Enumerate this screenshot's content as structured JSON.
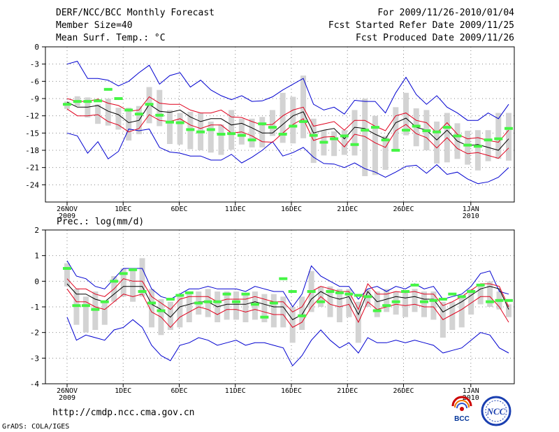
{
  "header": {
    "title": "DERF/NCC/BCC Monthly Forecast",
    "member_size": "Member Size=40",
    "variable": "Mean Surf. Temp.: °C",
    "forecast_period": "For 2009/11/26-2010/01/04",
    "fcst_started": "Fcst Started Refer Date 2009/11/25",
    "fcst_produced": "Fcst Produced Date 2009/11/26"
  },
  "footer": {
    "url": "http://cmdp.ncc.cma.gov.cn",
    "grads": "GrADS: COLA/IGES",
    "logo_bcc": "BCC",
    "logo_ncc": "NCC"
  },
  "colors": {
    "box": "#d3d3d3",
    "mean": "#000000",
    "spread": "#e0001c",
    "extreme": "#0000d0",
    "obs": "#45f545"
  },
  "x_axis": {
    "days": 40,
    "ticks": [
      {
        "day": 0,
        "label": "26NOV",
        "sub": "2009"
      },
      {
        "day": 5,
        "label": "1DEC",
        "sub": ""
      },
      {
        "day": 10,
        "label": "6DEC",
        "sub": ""
      },
      {
        "day": 15,
        "label": "11DEC",
        "sub": ""
      },
      {
        "day": 20,
        "label": "16DEC",
        "sub": ""
      },
      {
        "day": 25,
        "label": "21DEC",
        "sub": ""
      },
      {
        "day": 30,
        "label": "26DEC",
        "sub": ""
      },
      {
        "day": 36,
        "label": "1JAN",
        "sub": "2010"
      }
    ]
  },
  "chart_data": [
    {
      "type": "box",
      "title": "Mean Surf. Temp.: °C",
      "ylim": [
        -27,
        0
      ],
      "yticks": [
        0,
        -3,
        -6,
        -9,
        -12,
        -15,
        -18,
        -21,
        -24
      ],
      "mean": [
        -9.6,
        -10.5,
        -10.5,
        -10.2,
        -11.2,
        -11.8,
        -13.2,
        -12.8,
        -10,
        -11.2,
        -11.4,
        -11,
        -12.2,
        -13,
        -12.5,
        -12.5,
        -13.6,
        -13.3,
        -14.1,
        -15,
        -15,
        -13.5,
        -12,
        -11.3,
        -15,
        -14.5,
        -14.2,
        -16,
        -14,
        -14.2,
        -15.2,
        -16,
        -13.2,
        -12.4,
        -14,
        -14.5,
        -16.2,
        -14.5,
        -16.4,
        -17.2,
        -17,
        -17.5,
        -18,
        -16
      ],
      "upper": [
        -9,
        -9.5,
        -9.5,
        -9.1,
        -9.8,
        -10.2,
        -11.2,
        -11,
        -8.7,
        -9.8,
        -10,
        -10,
        -11,
        -11.5,
        -11.5,
        -11,
        -12.2,
        -12.3,
        -13,
        -13.6,
        -13.5,
        -12,
        -11,
        -10.5,
        -13.8,
        -13.4,
        -13,
        -14.5,
        -12.8,
        -12.8,
        -13.8,
        -14.6,
        -12,
        -11.5,
        -12.8,
        -13.2,
        -15,
        -13.2,
        -15.2,
        -16,
        -15.8,
        -16.3,
        -16.6,
        -14.5
      ],
      "lower": [
        -10.8,
        -12,
        -12,
        -11.8,
        -13,
        -13.6,
        -14.8,
        -14.2,
        -11.8,
        -12.8,
        -13,
        -12.5,
        -13.6,
        -14.2,
        -13.6,
        -13.6,
        -15,
        -14.8,
        -15.5,
        -16.5,
        -16.6,
        -15,
        -13.5,
        -12.5,
        -16.3,
        -15.7,
        -15.6,
        -17.4,
        -15.2,
        -15.6,
        -16.7,
        -17.5,
        -14.6,
        -13.5,
        -15.1,
        -15.8,
        -17.6,
        -15.8,
        -17.7,
        -18.6,
        -18.4,
        -18.9,
        -19.4,
        -17.6
      ],
      "max": [
        -3,
        -2.5,
        -5.5,
        -5.5,
        -5.8,
        -6.8,
        -6,
        -4.5,
        -3.2,
        -6.5,
        -5,
        -4.5,
        -7,
        -5.8,
        -7.5,
        -8.5,
        -9.2,
        -8.5,
        -9.5,
        -9.4,
        -8.7,
        -7.5,
        -6.5,
        -5.5,
        -10,
        -11,
        -10.5,
        -11.7,
        -9.3,
        -9.5,
        -9.5,
        -11.5,
        -8,
        -5.3,
        -8.3,
        -10,
        -8.5,
        -10.5,
        -11.5,
        -12.8,
        -12.8,
        -11.5,
        -12.5,
        -10
      ],
      "min": [
        -15,
        -15.5,
        -18.5,
        -16.5,
        -19.5,
        -18.2,
        -14.3,
        -14.6,
        -14.3,
        -17.5,
        -18.3,
        -18.5,
        -19,
        -19,
        -19.7,
        -19.7,
        -18.7,
        -20.2,
        -19.2,
        -18,
        -16.5,
        -19,
        -18.4,
        -17.5,
        -19.2,
        -20.3,
        -20.4,
        -21,
        -20.2,
        -21.2,
        -21.8,
        -22.7,
        -21.8,
        -20.8,
        -20.6,
        -22,
        -20.5,
        -22.2,
        -21.8,
        -23,
        -23.8,
        -23.5,
        -22.7,
        -21
      ],
      "box_hi": [
        -9.5,
        -8.6,
        -8.8,
        -10,
        -9,
        -10.6,
        -10.6,
        -10.3,
        -7,
        -7.5,
        -11,
        -11.5,
        -11.3,
        -11.5,
        -13,
        -13.5,
        -11,
        -12.5,
        -12.5,
        -12.2,
        -11,
        -8,
        -8.7,
        -5,
        -12.5,
        -14.5,
        -14.7,
        -14.5,
        -11,
        -9,
        -12,
        -15.5,
        -10.5,
        -8,
        -10.7,
        -11,
        -13,
        -11.5,
        -13.3,
        -14.6,
        -14.5,
        -14.5,
        -11.5,
        -11.5
      ],
      "box_lo": [
        -10.8,
        -10.3,
        -12.3,
        -13.4,
        -13.7,
        -14.4,
        -16.3,
        -15.2,
        -13.3,
        -13.8,
        -16.9,
        -17,
        -17.8,
        -18,
        -18.4,
        -18.8,
        -17.9,
        -17,
        -17.5,
        -17.5,
        -15.5,
        -16.7,
        -16.8,
        -15.9,
        -20.2,
        -18.9,
        -19,
        -18.8,
        -18.9,
        -22.5,
        -22.3,
        -21.4,
        -18.2,
        -15.4,
        -17.3,
        -18,
        -20.3,
        -20.1,
        -19.5,
        -20.5,
        -21.5,
        -19.9,
        -19.5,
        -19.8
      ],
      "obs": [
        -10,
        -9.5,
        -9.5,
        -9.4,
        -7.4,
        -9,
        -11,
        -11.7,
        -10,
        -11.9,
        -13.1,
        -13.2,
        -14.4,
        -14.8,
        -14.4,
        -15.2,
        -15.1,
        -15.4,
        -16.2,
        -13.4,
        -14,
        -15.2,
        -13.8,
        -13,
        -15.4,
        -16.6,
        -16,
        -15.5,
        -17,
        -14.5,
        -14,
        -16.2,
        -18,
        -14.5,
        -13.8,
        -14.6,
        -14.8,
        -14,
        -15.5,
        -17.1,
        -17.3,
        -16.2,
        -16,
        -14.2
      ]
    },
    {
      "type": "box",
      "title": "Prec.: log(mm/d)",
      "ylim": [
        -4,
        2
      ],
      "yticks": [
        2,
        1,
        0,
        -1,
        -2,
        -3,
        -4
      ],
      "mean": [
        -0.1,
        -0.5,
        -0.5,
        -0.7,
        -0.8,
        -0.5,
        -0.2,
        -0.2,
        -0.2,
        -0.9,
        -1.1,
        -1.4,
        -1,
        -0.9,
        -0.8,
        -0.8,
        -1,
        -0.9,
        -0.9,
        -0.9,
        -0.8,
        -0.9,
        -1,
        -1,
        -1.5,
        -1.3,
        -0.7,
        -0.4,
        -0.6,
        -0.7,
        -0.6,
        -1.3,
        -0.4,
        -0.8,
        -0.7,
        -0.6,
        -0.65,
        -0.6,
        -0.7,
        -0.7,
        -1.2,
        -1,
        -0.8,
        -0.55,
        -0.3,
        -0.2,
        -0.3,
        -1.1
      ],
      "upper": [
        0.1,
        -0.3,
        -0.3,
        -0.5,
        -0.6,
        -0.3,
        0.1,
        0,
        0,
        -0.6,
        -0.85,
        -1.1,
        -0.7,
        -0.6,
        -0.6,
        -0.6,
        -0.8,
        -0.7,
        -0.7,
        -0.7,
        -0.6,
        -0.7,
        -0.8,
        -0.8,
        -1.2,
        -1,
        -0.4,
        -0.2,
        -0.3,
        -0.4,
        -0.4,
        -1.1,
        -0.1,
        -0.5,
        -0.5,
        -0.4,
        -0.45,
        -0.4,
        -0.5,
        -0.5,
        -0.95,
        -0.8,
        -0.6,
        -0.35,
        -0.1,
        -0.1,
        -0.2,
        -1
      ],
      "lower": [
        -0.3,
        -0.8,
        -0.8,
        -1,
        -1.1,
        -0.8,
        -0.5,
        -0.6,
        -0.5,
        -1.2,
        -1.4,
        -1.8,
        -1.4,
        -1.2,
        -1,
        -1.1,
        -1.3,
        -1.1,
        -1.1,
        -1.2,
        -1.1,
        -1.2,
        -1.3,
        -1.3,
        -1.8,
        -1.6,
        -1,
        -0.6,
        -0.9,
        -1,
        -0.9,
        -1.6,
        -0.8,
        -1.1,
        -1,
        -0.9,
        -0.95,
        -0.9,
        -1,
        -1,
        -1.5,
        -1.3,
        -1.1,
        -0.85,
        -0.6,
        -0.6,
        -1,
        -1.6
      ],
      "max": [
        0.8,
        0.2,
        0.1,
        -0.2,
        -0.3,
        0.1,
        0.5,
        0.5,
        0.5,
        -0.3,
        -0.6,
        -0.7,
        -0.5,
        -0.3,
        -0.3,
        -0.2,
        -0.3,
        -0.3,
        -0.3,
        -0.4,
        -0.2,
        -0.3,
        -0.4,
        -0.4,
        -1,
        -0.5,
        0.6,
        0.2,
        0,
        -0.2,
        -0.2,
        -0.7,
        -0.3,
        -0.2,
        -0.4,
        -0.2,
        -0.3,
        -0.1,
        -0.3,
        -0.2,
        -0.7,
        -0.6,
        -0.5,
        -0.2,
        0.3,
        0.4,
        -0.4,
        -0.5
      ],
      "min": [
        -1.4,
        -2.3,
        -2.1,
        -2.2,
        -2.3,
        -1.9,
        -1.8,
        -1.5,
        -1.8,
        -2.5,
        -2.9,
        -3.1,
        -2.5,
        -2.4,
        -2.2,
        -2.3,
        -2.5,
        -2.4,
        -2.3,
        -2.5,
        -2.4,
        -2.4,
        -2.5,
        -2.6,
        -3.3,
        -2.9,
        -2.3,
        -1.9,
        -2.3,
        -2.6,
        -2.4,
        -2.8,
        -2.2,
        -2.4,
        -2.4,
        -2.3,
        -2.4,
        -2.3,
        -2.4,
        -2.5,
        -2.8,
        -2.7,
        -2.6,
        -2.3,
        -2,
        -2.1,
        -2.6,
        -2.8
      ],
      "box_hi": [
        0.7,
        -0.3,
        -0.6,
        -0.4,
        -0.8,
        0.2,
        0.5,
        0.5,
        0.9,
        -0.3,
        -0.7,
        -0.8,
        -0.6,
        -0.4,
        -0.4,
        -0.3,
        -0.4,
        -0.4,
        -0.4,
        -0.5,
        -0.4,
        -0.5,
        -0.5,
        -0.6,
        -1,
        -0.6,
        0.4,
        -0.2,
        -0.2,
        -0.3,
        -0.3,
        -0.8,
        -0.3,
        -0.4,
        -0.3,
        -0.4,
        -0.4,
        -0.3,
        -0.4,
        -0.4,
        -0.8,
        -0.8,
        -0.6,
        -0.3,
        -0.1,
        0,
        -0.4,
        -0.9
      ],
      "box_lo": [
        -0.2,
        -1.7,
        -2,
        -1.9,
        -1.7,
        -0.8,
        -0.6,
        -0.8,
        -0.6,
        -1.8,
        -2.1,
        -1.9,
        -1.8,
        -1.6,
        -1.3,
        -1.4,
        -1.6,
        -1.5,
        -1.5,
        -1.6,
        -1.5,
        -1.6,
        -1.8,
        -1.8,
        -2.4,
        -1.9,
        -1.2,
        -1,
        -1.4,
        -1.6,
        -1.4,
        -2.4,
        -1,
        -1.4,
        -1.2,
        -1.3,
        -1.4,
        -1.2,
        -1.4,
        -1.5,
        -2.2,
        -1.9,
        -1.8,
        -1.3,
        -0.9,
        -1,
        -1.1,
        -1.4
      ],
      "obs": [
        0.5,
        -0.95,
        -0.95,
        -1.1,
        -0.8,
        0,
        0.3,
        0.45,
        -0.4,
        -0.85,
        -1.15,
        -0.7,
        -0.55,
        -0.45,
        -0.85,
        -0.8,
        -0.8,
        -0.5,
        -0.8,
        -0.5,
        -0.9,
        -1.4,
        -0.85,
        0.1,
        -0.4,
        -1.35,
        -0.4,
        -0.8,
        -0.4,
        -0.45,
        -0.5,
        -0.55,
        -0.6,
        -1.15,
        -0.95,
        -0.8,
        -0.4,
        -0.15,
        -0.8,
        -0.75,
        -0.7,
        -0.5,
        -0.6,
        -0.4,
        -0.15,
        -0.8,
        -0.75,
        -0.75
      ]
    }
  ]
}
